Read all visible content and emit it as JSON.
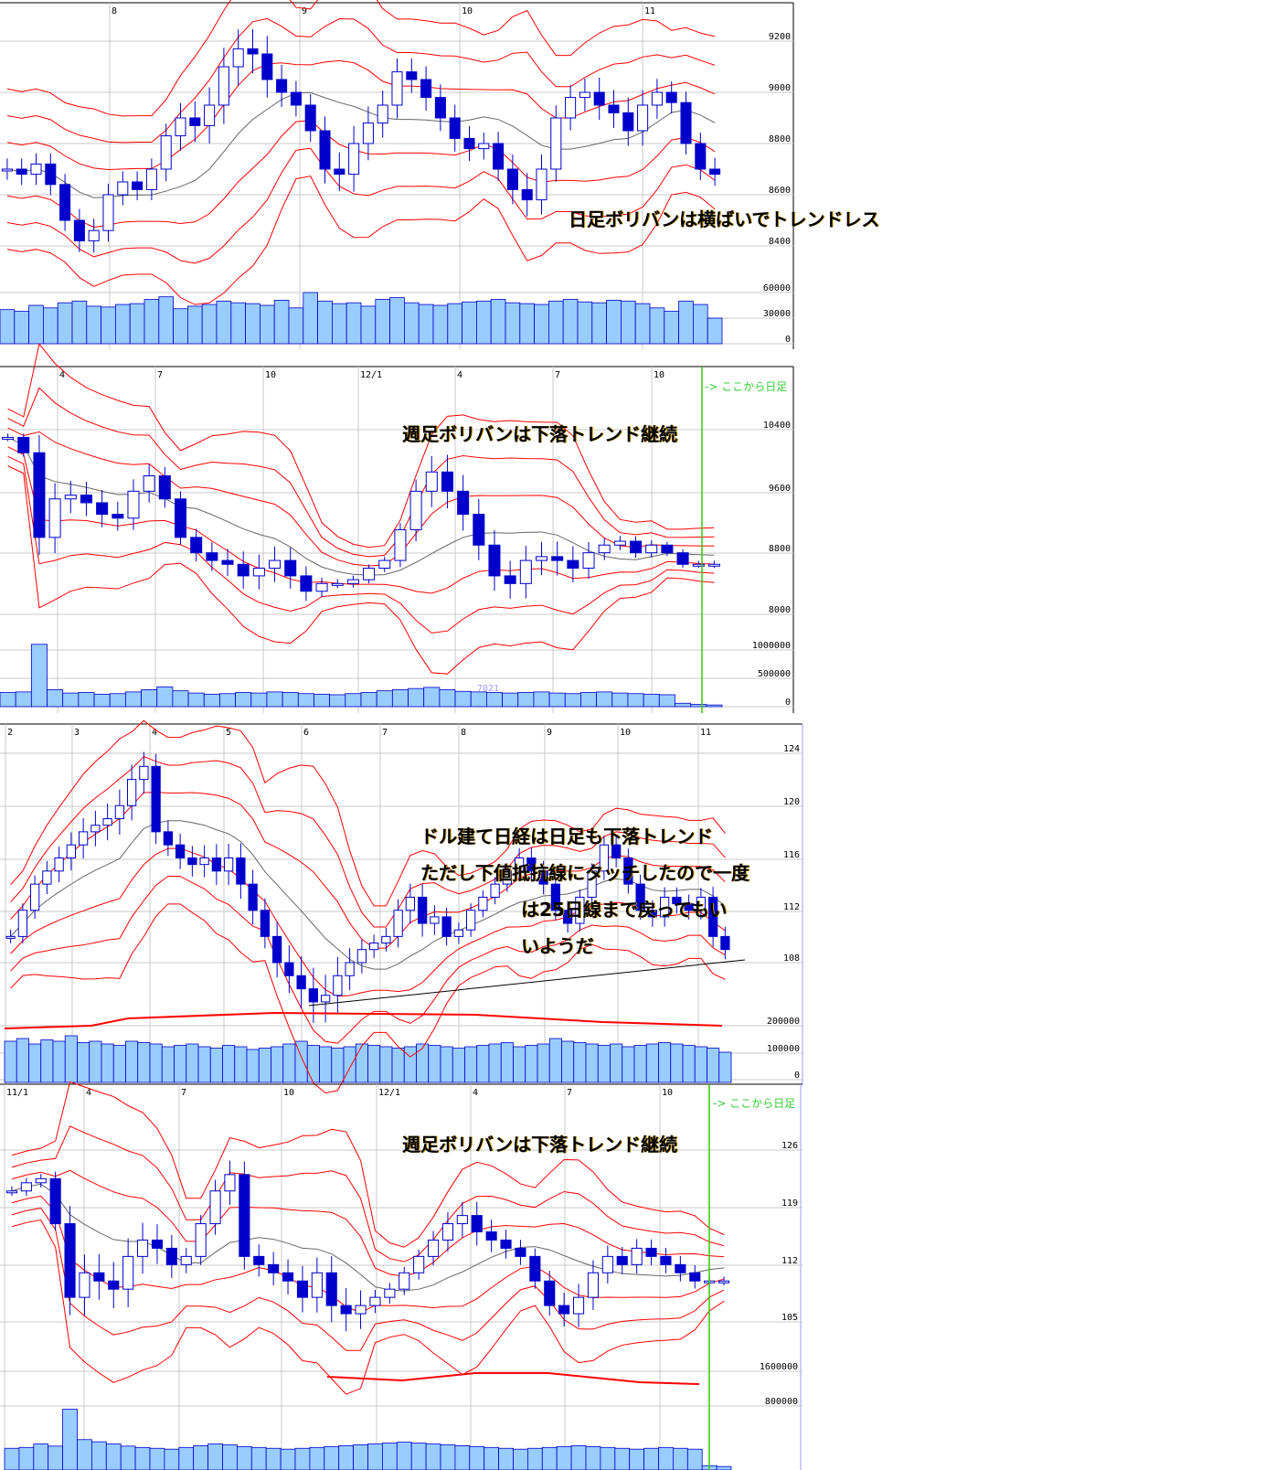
{
  "colors": {
    "candle": "#0000cc",
    "band": "#ff0000",
    "mid": "#666666",
    "volume": "#99ccff",
    "grid": "#c8c8c8",
    "marker": "#33cc00"
  },
  "chart_data": [
    {
      "type": "candlestick",
      "title": "",
      "xticks": [
        "8",
        "9",
        "10",
        "11"
      ],
      "yticks": [
        "9200",
        "9000",
        "8800",
        "8600",
        "8400"
      ],
      "vticks": [
        "60000",
        "30000",
        "0"
      ],
      "annotation": "日足ボリバンは横ばいでトレンドレス",
      "closes": [
        8700,
        8680,
        8720,
        8640,
        8500,
        8420,
        8460,
        8600,
        8650,
        8620,
        8700,
        8830,
        8900,
        8870,
        8950,
        9100,
        9170,
        9150,
        9050,
        9000,
        8950,
        8850,
        8700,
        8680,
        8800,
        8880,
        8950,
        9080,
        9050,
        8980,
        8900,
        8820,
        8780,
        8800,
        8700,
        8620,
        8580,
        8700,
        8900,
        8980,
        9000,
        8950,
        8920,
        8850,
        8950,
        9000,
        8960,
        8800,
        8700,
        8680
      ],
      "volumes": [
        40000,
        38000,
        45000,
        42000,
        48000,
        50000,
        44000,
        43000,
        46000,
        47000,
        52000,
        55000,
        41000,
        44000,
        46000,
        50000,
        48000,
        47000,
        45000,
        51000,
        42000,
        60000,
        50000,
        47000,
        48000,
        44000,
        52000,
        54000,
        48000,
        46000,
        45000,
        47000,
        49000,
        50000,
        52000,
        48000,
        47000,
        46000,
        50000,
        52000,
        49000,
        48000,
        51000,
        50000,
        47000,
        42000,
        38000,
        50000,
        46000,
        30000
      ]
    },
    {
      "type": "candlestick",
      "title": "",
      "xticks": [
        "4",
        "7",
        "10",
        "12/1",
        "4",
        "7",
        "10"
      ],
      "yticks": [
        "10400",
        "9600",
        "8800",
        "8000"
      ],
      "vticks": [
        "1000000",
        "500000",
        "0"
      ],
      "annotation": "週足ボリバンは下落トレンド継続",
      "marker_label": "-> ここから日足",
      "volume_label": "7021",
      "closes": [
        10300,
        10100,
        9000,
        9500,
        9550,
        9450,
        9300,
        9250,
        9600,
        9800,
        9500,
        9000,
        8800,
        8700,
        8650,
        8500,
        8600,
        8700,
        8500,
        8300,
        8400,
        8400,
        8450,
        8600,
        8700,
        9100,
        9600,
        9850,
        9600,
        9300,
        8900,
        8500,
        8400,
        8700,
        8750,
        8700,
        8600,
        8800,
        8900,
        8950,
        8800,
        8900,
        8800,
        8650,
        8650,
        8650
      ],
      "volumes": [
        250000,
        260000,
        1100000,
        300000,
        240000,
        250000,
        220000,
        230000,
        260000,
        300000,
        350000,
        280000,
        240000,
        220000,
        230000,
        250000,
        240000,
        260000,
        250000,
        230000,
        220000,
        210000,
        230000,
        250000,
        280000,
        300000,
        320000,
        340000,
        300000,
        270000,
        260000,
        250000,
        240000,
        250000,
        260000,
        240000,
        230000,
        250000,
        260000,
        240000,
        230000,
        220000,
        210000,
        60000,
        40000,
        30000
      ]
    },
    {
      "type": "candlestick",
      "title": "",
      "xticks": [
        "2",
        "3",
        "4",
        "5",
        "6",
        "7",
        "8",
        "9",
        "10",
        "11"
      ],
      "yticks": [
        "124",
        "120",
        "116",
        "112",
        "108"
      ],
      "vticks": [
        "200000",
        "100000",
        "0"
      ],
      "annotation_lines": [
        "ドル建て日経は日足も下落トレンド",
        "ただし下値抵抗線にタッチしたので一度",
        "は25日線まで戻ってもい",
        "いようだ"
      ],
      "closes": [
        110,
        112,
        114,
        115,
        116,
        117,
        118,
        118.5,
        119,
        120,
        122,
        123,
        118,
        117,
        116,
        115.5,
        116,
        115,
        116,
        114,
        112,
        110,
        108,
        107,
        106,
        105,
        105.5,
        107,
        108,
        109,
        109.5,
        110,
        112,
        113,
        111,
        111.5,
        110,
        110.5,
        112,
        113,
        114,
        115,
        116,
        115,
        114,
        112,
        111,
        113,
        115,
        117,
        116,
        114,
        112,
        111.5,
        113,
        112.5,
        112,
        113,
        110,
        109
      ],
      "volumes": [
        150000,
        160000,
        140000,
        155000,
        150000,
        170000,
        145000,
        150000,
        140000,
        135000,
        150000,
        145000,
        140000,
        130000,
        135000,
        140000,
        130000,
        125000,
        135000,
        130000,
        120000,
        125000,
        130000,
        140000,
        150000,
        135000,
        130000,
        125000,
        130000,
        140000,
        135000,
        130000,
        125000,
        130000,
        140000,
        135000,
        130000,
        125000,
        130000,
        135000,
        140000,
        145000,
        130000,
        135000,
        140000,
        160000,
        150000,
        145000,
        140000,
        135000,
        140000,
        130000,
        135000,
        140000,
        145000,
        140000,
        135000,
        130000,
        125000,
        110000
      ]
    },
    {
      "type": "candlestick",
      "title": "",
      "xticks": [
        "11/1",
        "4",
        "7",
        "10",
        "12/1",
        "4",
        "7",
        "10"
      ],
      "yticks": [
        "126",
        "119",
        "112",
        "105"
      ],
      "vticks": [
        "1600000",
        "800000"
      ],
      "annotation": "週足ボリバンは下落トレンド継続",
      "marker_label": "-> ここから日足",
      "closes": [
        121,
        122,
        122.5,
        117,
        108,
        111,
        110,
        109,
        113,
        115,
        114,
        112,
        113,
        117,
        121,
        123,
        113,
        112,
        111,
        110,
        108,
        111,
        107,
        106,
        107,
        108,
        109,
        111,
        113,
        115,
        117,
        118,
        116,
        115,
        114,
        113,
        110,
        107,
        106,
        108,
        111,
        113,
        112,
        114,
        113,
        112,
        111,
        110,
        110,
        110
      ],
      "volumes": [
        500000,
        520000,
        600000,
        550000,
        1400000,
        700000,
        650000,
        600000,
        550000,
        520000,
        500000,
        480000,
        520000,
        560000,
        600000,
        580000,
        540000,
        520000,
        500000,
        480000,
        500000,
        520000,
        540000,
        560000,
        580000,
        600000,
        620000,
        640000,
        620000,
        600000,
        580000,
        560000,
        540000,
        520000,
        500000,
        480000,
        500000,
        520000,
        540000,
        560000,
        540000,
        520000,
        500000,
        480000,
        500000,
        520000,
        500000,
        480000,
        100000,
        80000
      ]
    }
  ]
}
